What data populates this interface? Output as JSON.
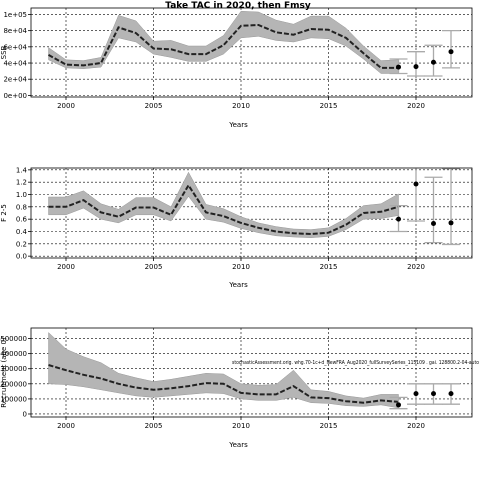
{
  "title": "Take TAC in 2020, then Fmsy",
  "chart_data": [
    {
      "type": "line",
      "ylabel": "SSB",
      "xlabel": "Years",
      "xlim": [
        1998,
        2023.2
      ],
      "ylim": [
        -2000,
        108000
      ],
      "xticks": [
        2000,
        2005,
        2010,
        2015,
        2020
      ],
      "yticks": [
        0,
        20000,
        40000,
        60000,
        80000,
        100000
      ],
      "ytick_labels": [
        "0e+00",
        "2e+04",
        "4e+04",
        "6e+04",
        "8e+04",
        "1e+05"
      ],
      "grid": true,
      "history": {
        "x": [
          1999,
          2000,
          2001,
          2002,
          2003,
          2004,
          2005,
          2006,
          2007,
          2008,
          2009,
          2010,
          2011,
          2012,
          2013,
          2014,
          2015,
          2016,
          2017,
          2018,
          2019
        ],
        "median": [
          50000,
          38000,
          37000,
          40000,
          84000,
          77000,
          58000,
          57000,
          51000,
          51000,
          62000,
          86000,
          87000,
          78000,
          75000,
          82000,
          81000,
          71000,
          52000,
          34000,
          34000
        ],
        "lower": [
          44000,
          34000,
          33000,
          35000,
          71000,
          66000,
          51000,
          47000,
          42000,
          42000,
          51000,
          71000,
          73000,
          68000,
          66000,
          71000,
          70000,
          61000,
          45000,
          27000,
          27000
        ],
        "upper": [
          59000,
          44000,
          43000,
          47000,
          99000,
          92000,
          67000,
          68000,
          61000,
          61000,
          74000,
          104000,
          103000,
          93000,
          88000,
          98000,
          98000,
          83000,
          61000,
          43000,
          44000
        ]
      },
      "projection": {
        "x": [
          2019,
          2020,
          2021,
          2022
        ],
        "value": [
          35000,
          35500,
          41000,
          54000
        ],
        "lower": [
          27000,
          24000,
          24000,
          34000
        ],
        "upper": [
          45000,
          54000,
          62000,
          80000
        ]
      }
    },
    {
      "type": "line",
      "ylabel": "F 2-5",
      "xlabel": "Years",
      "xlim": [
        1998,
        2023.2
      ],
      "ylim": [
        -0.03,
        1.43
      ],
      "xticks": [
        2000,
        2005,
        2010,
        2015,
        2020
      ],
      "yticks": [
        0,
        0.2,
        0.4,
        0.6,
        0.8,
        1.0,
        1.2,
        1.4
      ],
      "ytick_labels": [
        "0.0",
        "0.2",
        "0.4",
        "0.6",
        "0.8",
        "1.0",
        "1.2",
        "1.4"
      ],
      "grid": true,
      "history": {
        "x": [
          1999,
          2000,
          2001,
          2002,
          2003,
          2004,
          2005,
          2006,
          2007,
          2008,
          2009,
          2010,
          2011,
          2012,
          2013,
          2014,
          2015,
          2016,
          2017,
          2018,
          2019
        ],
        "median": [
          0.8,
          0.8,
          0.91,
          0.71,
          0.64,
          0.79,
          0.79,
          0.67,
          1.15,
          0.71,
          0.65,
          0.54,
          0.46,
          0.4,
          0.37,
          0.36,
          0.38,
          0.51,
          0.7,
          0.72,
          0.8
        ],
        "lower": [
          0.67,
          0.67,
          0.78,
          0.6,
          0.54,
          0.67,
          0.67,
          0.57,
          0.97,
          0.6,
          0.55,
          0.45,
          0.38,
          0.33,
          0.31,
          0.3,
          0.32,
          0.43,
          0.6,
          0.61,
          0.66
        ],
        "upper": [
          0.96,
          0.96,
          1.06,
          0.85,
          0.76,
          0.95,
          0.95,
          0.8,
          1.36,
          0.84,
          0.77,
          0.64,
          0.54,
          0.48,
          0.44,
          0.43,
          0.46,
          0.61,
          0.82,
          0.85,
          1.01
        ]
      },
      "projection": {
        "x": [
          2019,
          2020,
          2021,
          2022
        ],
        "value": [
          0.6,
          1.17,
          0.53,
          0.54
        ],
        "lower": [
          0.4,
          0.57,
          0.22,
          0.19
        ],
        "upper": [
          0.82,
          1.45,
          1.28,
          1.42
        ]
      }
    },
    {
      "type": "line",
      "ylabel": "Recruitment (age 0)",
      "xlabel": "Years",
      "xlim": [
        1998,
        2023.2
      ],
      "ylim": [
        -20000,
        570000
      ],
      "xticks": [
        2000,
        2005,
        2010,
        2015,
        2020
      ],
      "yticks": [
        0,
        100000,
        200000,
        300000,
        400000,
        500000
      ],
      "ytick_labels": [
        "0",
        "100000",
        "200000",
        "300000",
        "400000",
        "500000"
      ],
      "grid": true,
      "annotation": "stochasticAssessment.orig.  whg.70-1c+d_NewFRA_Aug2020_fullSurveySeries_115109  . gai. 128800.2-04-auto",
      "history": {
        "x": [
          1999,
          2000,
          2001,
          2002,
          2003,
          2004,
          2005,
          2006,
          2007,
          2008,
          2009,
          2010,
          2011,
          2012,
          2013,
          2014,
          2015,
          2016,
          2017,
          2018,
          2019
        ],
        "median": [
          325000,
          290000,
          260000,
          235000,
          200000,
          175000,
          160000,
          170000,
          185000,
          205000,
          200000,
          140000,
          130000,
          130000,
          185000,
          110000,
          105000,
          85000,
          75000,
          90000,
          80000
        ],
        "lower": [
          200000,
          195000,
          180000,
          160000,
          140000,
          120000,
          110000,
          120000,
          130000,
          140000,
          135000,
          100000,
          90000,
          90000,
          110000,
          75000,
          70000,
          55000,
          50000,
          60000,
          40000
        ],
        "upper": [
          540000,
          430000,
          380000,
          340000,
          270000,
          240000,
          215000,
          230000,
          250000,
          270000,
          265000,
          200000,
          190000,
          195000,
          290000,
          160000,
          150000,
          120000,
          105000,
          130000,
          130000
        ]
      },
      "projection": {
        "x": [
          2019,
          2020,
          2021,
          2022
        ],
        "value": [
          60000,
          135000,
          135000,
          135000
        ],
        "lower": [
          35000,
          65000,
          65000,
          65000
        ],
        "upper": [
          110000,
          200000,
          200000,
          200000
        ]
      }
    }
  ]
}
